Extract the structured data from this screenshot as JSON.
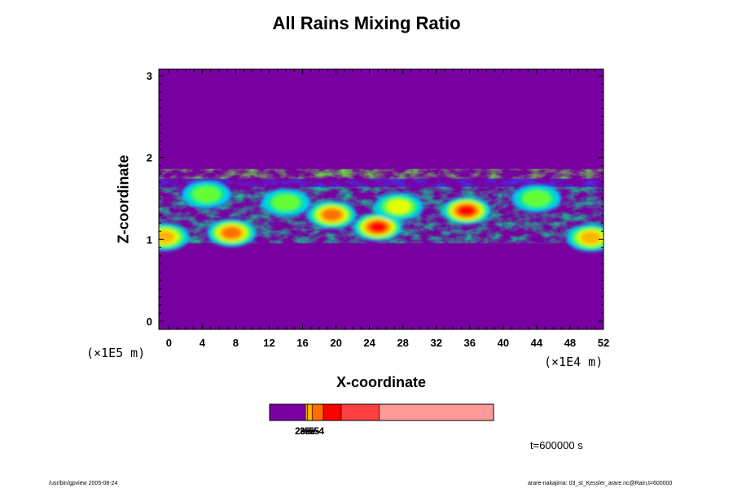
{
  "chart_data": {
    "type": "heatmap",
    "title": "All Rains Mixing Ratio",
    "xlabel": "X-coordinate",
    "ylabel": "Z-coordinate",
    "x_unit": "(×1E4 m)",
    "y_unit": "(×1E5 m)",
    "xlim": [
      -1.2,
      52
    ],
    "ylim": [
      -0.1,
      3.08
    ],
    "x_ticks": [
      0,
      4,
      8,
      12,
      16,
      20,
      24,
      28,
      32,
      36,
      40,
      44,
      48,
      52
    ],
    "y_ticks": [
      0,
      1,
      2,
      3
    ],
    "grid": false,
    "background_color": "#7800a0",
    "palette": [
      "#7800a0",
      "#3c3cff",
      "#00c8ff",
      "#00e68c",
      "#64ff32",
      "#e6ff00",
      "#ffb400",
      "#ff6e00",
      "#ff0000",
      "#ff8c8c"
    ],
    "field_layer": {
      "z_range": [
        0.95,
        1.86
      ],
      "x_range": [
        -1.2,
        52
      ]
    },
    "hotspots": [
      {
        "x": 25.0,
        "z": 1.15,
        "level": 8
      },
      {
        "x": 35.6,
        "z": 1.35,
        "level": 8
      },
      {
        "x": 19.5,
        "z": 1.3,
        "level": 7
      },
      {
        "x": 7.5,
        "z": 1.08,
        "level": 7
      },
      {
        "x": -0.5,
        "z": 1.03,
        "level": 6
      },
      {
        "x": 50.5,
        "z": 1.02,
        "level": 6
      },
      {
        "x": 27.5,
        "z": 1.4,
        "level": 5
      },
      {
        "x": 44.0,
        "z": 1.5,
        "level": 4
      },
      {
        "x": 4.5,
        "z": 1.55,
        "level": 4
      },
      {
        "x": 14.0,
        "z": 1.45,
        "level": 4
      }
    ],
    "colorbar": {
      "colors": [
        "#7800a0",
        "#e0a000",
        "#ffb400",
        "#ff6e00",
        "#ff0000",
        "#ff4040",
        "#ff9a9a"
      ],
      "fractions": [
        0.16,
        0.01,
        0.02,
        0.05,
        0.08,
        0.17,
        0.51
      ],
      "labels": [
        "2e-5",
        "3e-5",
        "5e-4"
      ]
    },
    "time_label": "t=600000 s"
  },
  "footer": {
    "left": "/usr/bin/gpview 2005-08-24",
    "right": "arare-nakajima: 03_st_Kessler_arare.nc@Rain,t=600000"
  }
}
